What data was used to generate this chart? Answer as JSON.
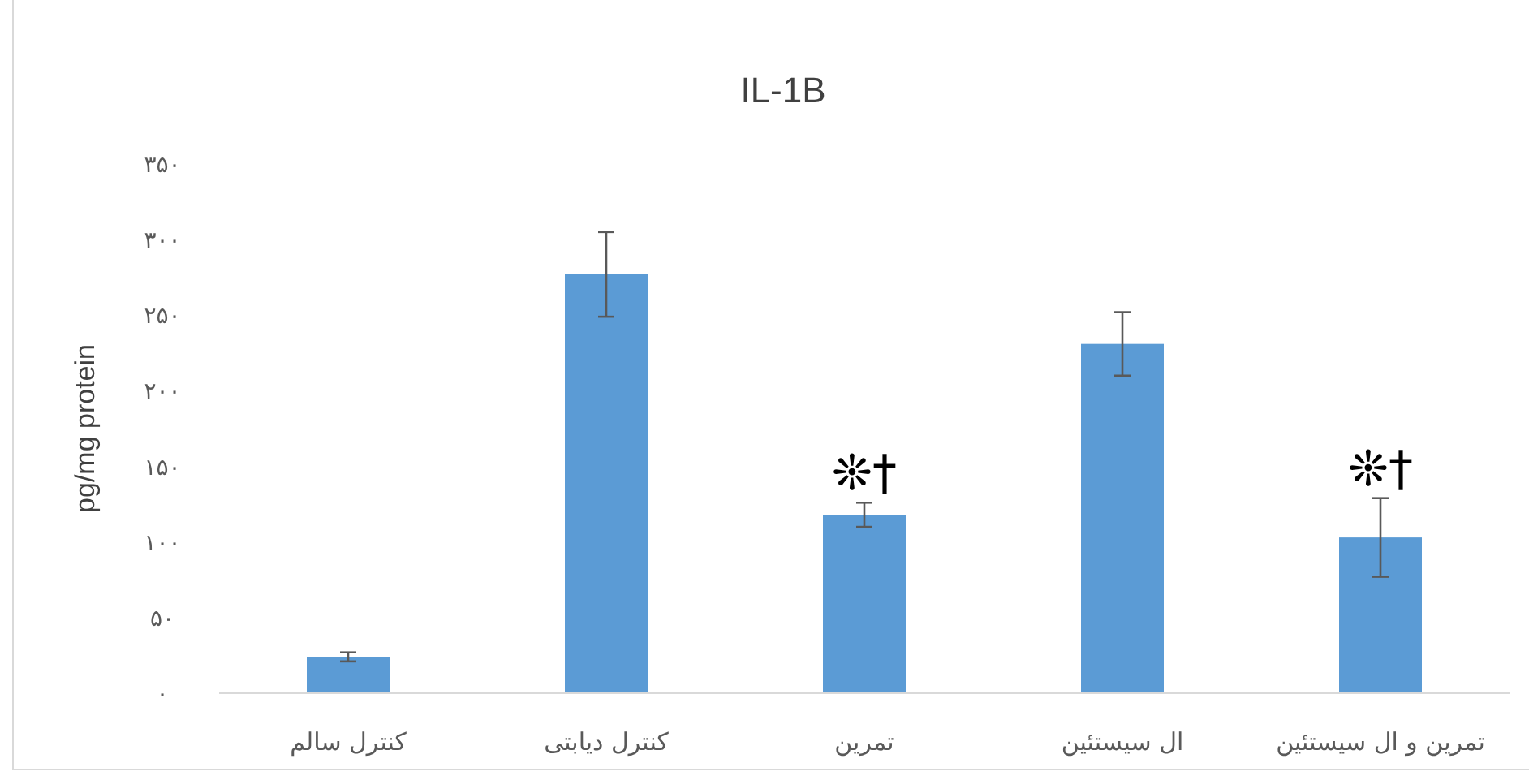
{
  "chart_data": {
    "type": "bar",
    "title": "IL-1B",
    "ylabel": "pg/mg protein",
    "categories": [
      "کنترل سالم",
      "کنترل دیابتی",
      "تمرین",
      "ال سیستئین",
      "تمرین و ال سیستئین"
    ],
    "values": [
      24,
      277,
      118,
      231,
      103
    ],
    "errors": [
      3,
      28,
      8,
      21,
      26
    ],
    "color": "#5b9bd5",
    "ylim": [
      0,
      350
    ],
    "yticks": [
      {
        "value": 0,
        "label": "۰"
      },
      {
        "value": 50,
        "label": "۵۰"
      },
      {
        "value": 100,
        "label": "۱۰۰"
      },
      {
        "value": 150,
        "label": "۱۵۰"
      },
      {
        "value": 200,
        "label": "۲۰۰"
      },
      {
        "value": 250,
        "label": "۲۵۰"
      },
      {
        "value": 300,
        "label": "۳۰۰"
      },
      {
        "value": 350,
        "label": "۳۵۰"
      }
    ],
    "annotations": [
      {
        "text": "❊†",
        "x": "تمرین",
        "y": 118
      },
      {
        "text": "❊†",
        "x": "تمرین و ال سیستئین",
        "y": 103
      }
    ]
  }
}
